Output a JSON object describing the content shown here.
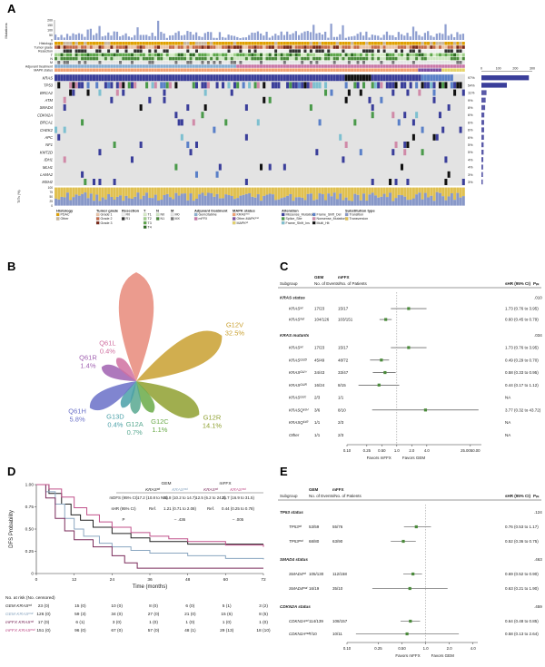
{
  "panels": {
    "A": "A",
    "B": "B",
    "C": "C",
    "D": "D",
    "E": "E"
  },
  "panelA": {
    "top_axis_ticks": [
      "200",
      "150",
      "100",
      "50",
      "0"
    ],
    "top_axis_label": "Mutations",
    "clinical_rows": [
      "Histology",
      "Tumor grade",
      "Resection",
      "T",
      "N",
      "M",
      "Adjuvant treatment",
      "MAPK status"
    ],
    "genes": [
      {
        "name": "KRAS",
        "pct": "97%",
        "bar": 280
      },
      {
        "name": "TP53",
        "pct": "54%",
        "bar": 150
      },
      {
        "name": "BRCA2",
        "pct": "11%",
        "bar": 30
      },
      {
        "name": "ATM",
        "pct": "9%",
        "bar": 25
      },
      {
        "name": "SMAD4",
        "pct": "8%",
        "bar": 22
      },
      {
        "name": "CDKN2A",
        "pct": "6%",
        "bar": 17
      },
      {
        "name": "BRCA1",
        "pct": "6%",
        "bar": 16
      },
      {
        "name": "CHEK2",
        "pct": "6%",
        "bar": 16
      },
      {
        "name": "APC",
        "pct": "6%",
        "bar": 15
      },
      {
        "name": "NF1",
        "pct": "5%",
        "bar": 13
      },
      {
        "name": "KMT2D",
        "pct": "5%",
        "bar": 13
      },
      {
        "name": "IDH1",
        "pct": "4%",
        "bar": 11
      },
      {
        "name": "MLH1",
        "pct": "4%",
        "bar": 10
      },
      {
        "name": "LAMA2",
        "pct": "3%",
        "bar": 9
      },
      {
        "name": "MSH2",
        "pct": "3%",
        "bar": 8
      }
    ],
    "right_axis_ticks": [
      "0",
      "100",
      "200",
      "300"
    ],
    "tit_label": "Ti/Tv (%)",
    "tit_ticks": [
      "100",
      "75",
      "50",
      "25",
      "0"
    ],
    "legend": [
      {
        "title": "Histology",
        "items": [
          {
            "label": "PDAC",
            "color": "#e0a000"
          },
          {
            "label": "Other",
            "color": "#c9b79c"
          }
        ]
      },
      {
        "title": "Tumor grade",
        "items": [
          {
            "label": "Grade 1",
            "color": "#e9c3a6"
          },
          {
            "label": "Grade 2",
            "color": "#c46a4a"
          },
          {
            "label": "Grade 3",
            "color": "#7a2a1a"
          }
        ]
      },
      {
        "title": "Resection",
        "items": [
          {
            "label": "R0",
            "color": "#f0f0f0"
          },
          {
            "label": "R1",
            "color": "#333333"
          }
        ]
      },
      {
        "title": "T",
        "items": [
          {
            "label": "T1",
            "color": "#d6ecc6"
          },
          {
            "label": "T2",
            "color": "#9fd08a"
          },
          {
            "label": "T3",
            "color": "#5da64a"
          },
          {
            "label": "T4",
            "color": "#2d6a22"
          }
        ]
      },
      {
        "title": "N",
        "items": [
          {
            "label": "N0",
            "color": "#cfe6c2"
          },
          {
            "label": "N1",
            "color": "#4a8a3a"
          }
        ]
      },
      {
        "title": "M",
        "items": [
          {
            "label": "M0",
            "color": "#e6e6e6"
          },
          {
            "label": "MX",
            "color": "#777777"
          }
        ]
      },
      {
        "title": "Adjuvant treatment",
        "items": [
          {
            "label": "Gemcitabine",
            "color": "#8aaed0"
          },
          {
            "label": "mFFX",
            "color": "#c878a8"
          }
        ]
      },
      {
        "title": "MAPK status",
        "items": [
          {
            "label": "KRASᵐᵘᵗ",
            "color": "#f2a070"
          },
          {
            "label": "Other-MAPKᵐᵘᵗ",
            "color": "#7a4fa0"
          },
          {
            "label": "MAPKʷᵗ",
            "color": "#e6d36a"
          }
        ]
      },
      {
        "title": "Alteration",
        "items": [
          {
            "label": "Missense_Mutation",
            "color": "#3a3e9a"
          },
          {
            "label": "Splice_Site",
            "color": "#4a9a4a"
          },
          {
            "label": "Frame_Shift_Ins",
            "color": "#7ec0d0"
          },
          {
            "label": "Frame_Shift_Del",
            "color": "#5a80c8"
          },
          {
            "label": "Nonsense_Mutation",
            "color": "#d08aa8"
          },
          {
            "label": "Multi_Hit",
            "color": "#111111"
          }
        ]
      },
      {
        "title": "Substitution type",
        "items": [
          {
            "label": "Transition",
            "color": "#8898c8"
          },
          {
            "label": "Transversion",
            "color": "#e0c050"
          }
        ]
      }
    ]
  },
  "panelB": {
    "slices": [
      {
        "label": "G12D",
        "pct": "43.7%",
        "color": "#e88a7a",
        "angle": 0,
        "value": 43.7
      },
      {
        "label": "G12V",
        "pct": "32.5%",
        "color": "#c9a030",
        "angle": 62,
        "value": 32.5
      },
      {
        "label": "G12R",
        "pct": "14.1%",
        "color": "#8fa030",
        "angle": 118,
        "value": 14.1
      },
      {
        "label": "G12C",
        "pct": "1.1%",
        "color": "#6aaa48",
        "angle": 152,
        "value": 1.1
      },
      {
        "label": "G12A",
        "pct": "0.7%",
        "color": "#58a890",
        "angle": 182,
        "value": 0.7
      },
      {
        "label": "G13D",
        "pct": "0.4%",
        "color": "#4aa0a8",
        "angle": 208,
        "value": 0.4
      },
      {
        "label": "Q61H",
        "pct": "5.8%",
        "color": "#6a70c8",
        "angle": 240,
        "value": 5.8
      },
      {
        "label": "Q61R",
        "pct": "1.4%",
        "color": "#a060b0",
        "angle": 292,
        "value": 1.4
      },
      {
        "label": "Q61L",
        "pct": "0.4%",
        "color": "#d070a0",
        "angle": 320,
        "value": 0.4
      }
    ]
  },
  "panelC": {
    "headers": {
      "gem": "GEM",
      "mffx": "mFFX",
      "subgroup": "Subgroup",
      "events": "No. of Events/No. of Patients",
      "shr": "sHR (95% CI)",
      "pint": "Pᵢₙₜ"
    },
    "sections": [
      {
        "title": "KRAS status",
        "p": ".010"
      },
      {
        "title": "KRAS mutants",
        "p": ".034"
      }
    ],
    "rows": [
      {
        "label": "KRASʷᵗ",
        "gem": "17/23",
        "mffx": "15/17",
        "hr": "1.73 (0.76 to 3.95)",
        "est": 1.73,
        "lo": 0.76,
        "hi": 3.95
      },
      {
        "label": "KRASᵐᵘᵗ",
        "gem": "104/126",
        "mffx": "103/151",
        "hr": "0.60 (0.45 to 0.79)",
        "est": 0.6,
        "lo": 0.45,
        "hi": 0.79
      },
      {
        "label": "KRASʷᵗ",
        "gem": "17/23",
        "mffx": "15/17",
        "hr": "1.73 (0.76 to 3.95)",
        "est": 1.73,
        "lo": 0.76,
        "hi": 3.95
      },
      {
        "label": "KRASᴳ¹²ᴰ",
        "gem": "45/49",
        "mffx": "48/72",
        "hr": "0.49 (0.29 to 0.70)",
        "est": 0.49,
        "lo": 0.29,
        "hi": 0.7
      },
      {
        "label": "KRASᴳ¹²ⱽ",
        "gem": "34/43",
        "mffx": "33/47",
        "hr": "0.58 (0.33 to 0.95)",
        "est": 0.58,
        "lo": 0.33,
        "hi": 0.95
      },
      {
        "label": "KRASᴳ¹²ᴿ",
        "gem": "16/24",
        "mffx": "8/15",
        "hr": "0.44 (0.17 to 1.12)",
        "est": 0.44,
        "lo": 0.17,
        "hi": 1.12
      },
      {
        "label": "KRASᴳ¹²ᶜ",
        "gem": "2/3",
        "mffx": "1/1",
        "hr": "NA",
        "est": null,
        "lo": null,
        "hi": null
      },
      {
        "label": "KRASQ⁶¹ᴴ",
        "gem": "3/6",
        "mffx": "8/10",
        "hr": "3.77 (0.32 to 43.72)",
        "est": 3.77,
        "lo": 0.32,
        "hi": 43.72
      },
      {
        "label": "KRASQ⁶¹ᴿ",
        "gem": "1/1",
        "mffx": "2/3",
        "hr": "NA",
        "est": null,
        "lo": null,
        "hi": null
      },
      {
        "label": "Other",
        "gem": "1/1",
        "mffx": "2/3",
        "hr": "NA",
        "est": null,
        "lo": null,
        "hi": null
      }
    ],
    "axis_ticks": [
      "0.10",
      "0.25",
      "0.50",
      "1.0",
      "2.0",
      "4.0",
      "25.0050.00"
    ],
    "favors_left": "Favors mFFX",
    "favors_right": "Favors GEM"
  },
  "panelD": {
    "ylabel": "DFS Probability",
    "xlabel": "Time (months)",
    "yticks": [
      "1.00",
      "0.75",
      "0.50",
      "0.25",
      "0"
    ],
    "xticks": [
      "0",
      "12",
      "24",
      "36",
      "48",
      "60",
      "72"
    ],
    "table": {
      "gem": "GEM",
      "mffx": "mFFX",
      "cols": [
        "KRASʷᵗ",
        "KRASᵐᵘᵗ",
        "KRASʷᵗ",
        "KRASᵐᵘᵗ"
      ],
      "rows": [
        {
          "label": "mDFS (95% CI)",
          "vals": [
            "17.2 (10.8 to NR)",
            "11.8 (10.2 to 14.7)",
            "12.5 (6.2 to 24.2)",
            "21.7 (16.9 to 31.5)"
          ]
        },
        {
          "label": "sHR (95% CI)",
          "vals": [
            "Ref.",
            "1.21 (0.71 to 2.08)",
            "Ref.",
            "0.44 (0.25 to 0.78)"
          ]
        },
        {
          "label": "P",
          "vals": [
            "",
            "– .436",
            "",
            "– .005"
          ]
        }
      ]
    },
    "risk_title": "No. at risk (No. censored)",
    "risk_rows": [
      {
        "label": "GEM KRASʷᵗ",
        "color": "#222222",
        "vals": [
          "23 (0)",
          "15 (0)",
          "10 (0)",
          "8 (0)",
          "6 (0)",
          "5 (1)",
          "3 (2)"
        ]
      },
      {
        "label": "GEM KRASᵐᵘᵗ",
        "color": "#8aa6c0",
        "vals": [
          "126 (0)",
          "59 (3)",
          "34 (0)",
          "27 (0)",
          "21 (0)",
          "15 (6)",
          "8 (5)"
        ]
      },
      {
        "label": "mFFX KRASʷᵗ",
        "color": "#7a2a5a",
        "vals": [
          "17 (0)",
          "6 (1)",
          "3 (0)",
          "1 (0)",
          "1 (0)",
          "1 (0)",
          "1 (0)"
        ]
      },
      {
        "label": "mFFX KRASᵐᵘᵗ",
        "color": "#c0508a",
        "vals": [
          "151 (0)",
          "96 (0)",
          "67 (0)",
          "57 (0)",
          "48 (1)",
          "29 (13)",
          "18 (10)"
        ]
      }
    ]
  },
  "panelE": {
    "headers": {
      "gem": "GEM",
      "mffx": "mFFX",
      "subgroup": "Subgroup",
      "events": "No. of Events/No. of Patients",
      "shr": "sHR (95% CI)",
      "pint": "Pᵢₙₜ"
    },
    "sections": [
      {
        "title": "TP53 status",
        "p": ".124"
      },
      {
        "title": "SMAD4 status",
        "p": ".463"
      },
      {
        "title": "CDKN2A status",
        "p": ".459"
      }
    ],
    "rows": [
      {
        "label": "TP53ʷᵗ",
        "gem": "53/59",
        "mffx": "55/76",
        "hr": "0.76 (0.53 to 1.17)",
        "est": 0.76,
        "lo": 0.53,
        "hi": 1.17
      },
      {
        "label": "TP53ᵐᵘᵗ",
        "gem": "68/80",
        "mffx": "63/90",
        "hr": "0.52 (0.36 to 0.75)",
        "est": 0.52,
        "lo": 0.36,
        "hi": 0.75
      },
      {
        "label": "SMAD4ʷᵗ",
        "gem": "105/130",
        "mffx": "112/158",
        "hr": "0.69 (0.52 to 0.90)",
        "est": 0.69,
        "lo": 0.52,
        "hi": 0.9
      },
      {
        "label": "SMAD4ᵐᵘᵗ",
        "gem": "16/19",
        "mffx": "35/10",
        "hr": "0.63 (0.21 to 1.90)",
        "est": 0.63,
        "lo": 0.21,
        "hi": 1.9
      },
      {
        "label": "CDKN2Aʷᵗ",
        "gem": "114/139",
        "mffx": "108/157",
        "hr": "0.64 (0.48 to 0.85)",
        "est": 0.64,
        "lo": 0.48,
        "hi": 0.85
      },
      {
        "label": "CDKN2Aᵐᵘᵗ",
        "gem": "7/10",
        "mffx": "10/11",
        "hr": "0.58 (0.13 to 2.64)",
        "est": 0.58,
        "lo": 0.13,
        "hi": 2.64
      }
    ],
    "axis_ticks": [
      "0.10",
      "0.25",
      "0.50",
      "1.0",
      "2.0",
      "4.0"
    ],
    "favors_left": "Favors mFFX",
    "favors_right": "Favors GEM"
  }
}
